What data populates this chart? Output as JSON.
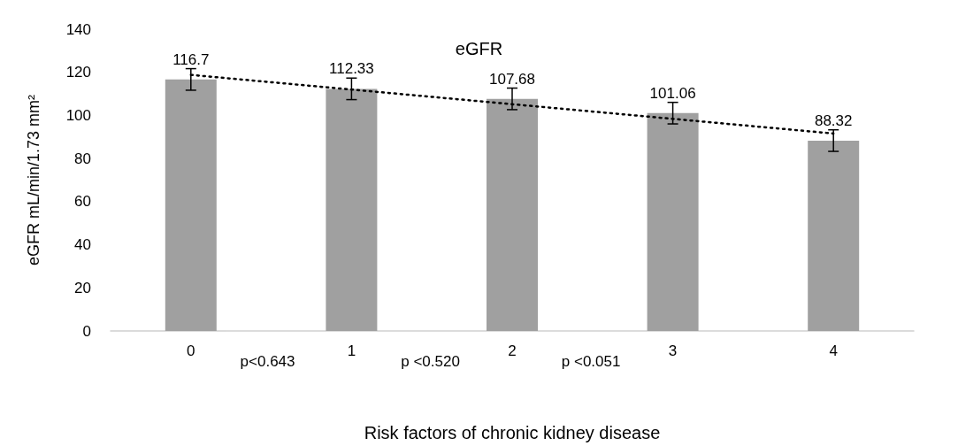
{
  "chart_data": {
    "type": "bar",
    "title": "eGFR",
    "xlabel": "Risk factors of chronic kidney disease",
    "ylabel": "eGFR mL/min/1.73 mm²",
    "categories": [
      "0",
      "1",
      "2",
      "3",
      "4"
    ],
    "series": [
      {
        "color": "#a0a0a0",
        "values": [
          116.7,
          112.33,
          107.68,
          101.06,
          88.32
        ],
        "errors": [
          5,
          5,
          5,
          5,
          5
        ],
        "value_labels": [
          "116.7",
          "112.33",
          "107.68",
          "101.06",
          "88.32"
        ]
      },
      {
        "type": "line",
        "color": "#000000",
        "x": [
          "0",
          "4"
        ],
        "values": [
          118.8,
          91.6
        ],
        "line_style": "dotted",
        "marker": "none"
      }
    ],
    "ylim": [
      0,
      140
    ],
    "yticks": [
      0,
      20,
      40,
      60,
      80,
      100,
      120,
      140
    ],
    "grid": false,
    "annotations": [
      "p<0.643",
      "p <0.520",
      "p <0.051"
    ]
  }
}
